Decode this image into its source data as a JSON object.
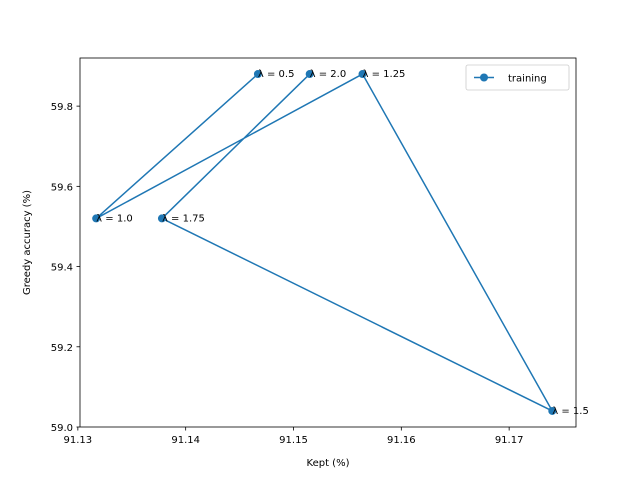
{
  "chart_data": {
    "type": "line",
    "title": "",
    "xlabel": "Kept (%)",
    "ylabel": "Greedy accuracy (%)",
    "xlim": [
      91.1302,
      91.1762
    ],
    "ylim": [
      59.0,
      59.92
    ],
    "xticks": [
      "91.13",
      "91.14",
      "91.15",
      "91.16",
      "91.17"
    ],
    "yticks": [
      "59.0",
      "59.2",
      "59.4",
      "59.6",
      "59.8"
    ],
    "grid": false,
    "legend_position": "upper right",
    "series": [
      {
        "name": "training",
        "color": "#1f77b4",
        "marker": "circle",
        "points": [
          {
            "x": 91.1467,
            "y": 59.88,
            "label": "λ = 0.5"
          },
          {
            "x": 91.1317,
            "y": 59.52,
            "label": "λ = 1.0"
          },
          {
            "x": 91.1564,
            "y": 59.88,
            "label": "λ = 1.25"
          },
          {
            "x": 91.174,
            "y": 59.04,
            "label": "λ = 1.5"
          },
          {
            "x": 91.1378,
            "y": 59.52,
            "label": "λ = 1.75"
          },
          {
            "x": 91.1515,
            "y": 59.88,
            "label": "λ = 2.0"
          }
        ]
      }
    ]
  }
}
